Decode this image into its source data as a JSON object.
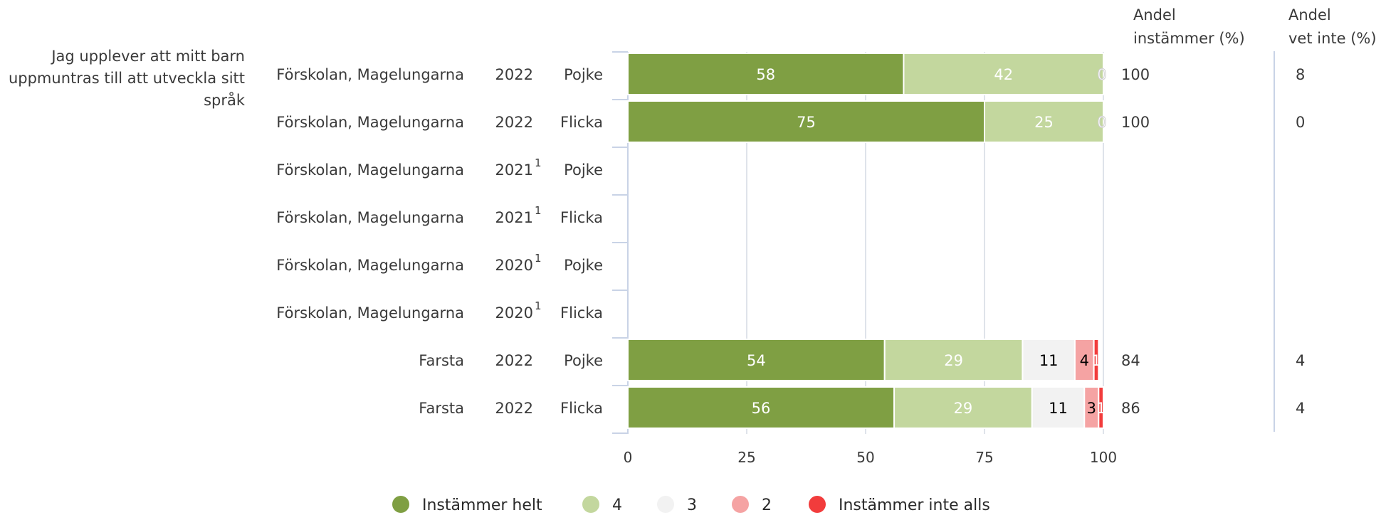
{
  "chart_data": {
    "type": "bar",
    "orientation": "horizontal",
    "stacked": true,
    "question": "Jag upplever att mitt barn uppmuntras till att utveckla sitt språk",
    "xlim": [
      0,
      100
    ],
    "xticks": [
      0,
      25,
      50,
      75,
      100
    ],
    "grid": true,
    "legend_position": "bottom",
    "series": [
      {
        "name": "Instämmer helt",
        "color": "#7f9f43"
      },
      {
        "name": "4",
        "color": "#c3d79e"
      },
      {
        "name": "3",
        "color": "#f2f2f2"
      },
      {
        "name": "2",
        "color": "#f5a3a3"
      },
      {
        "name": "Instämmer inte alls",
        "color": "#f23c3c"
      }
    ],
    "headers": {
      "andel_instammer": [
        "Andel",
        "instämmer (%)"
      ],
      "andel_vet_inte": [
        "Andel",
        "vet inte (%)"
      ]
    },
    "rows": [
      {
        "unit": "Förskolan, Magelungarna",
        "year": "2022",
        "sup": "",
        "gender": "Pojke",
        "values": [
          58,
          42,
          0,
          0,
          0
        ],
        "labels": [
          "58",
          "42",
          "0",
          "",
          ""
        ],
        "andel_instammer": "100",
        "andel_vet_inte": "8"
      },
      {
        "unit": "Förskolan, Magelungarna",
        "year": "2022",
        "sup": "",
        "gender": "Flicka",
        "values": [
          75,
          25,
          0,
          0,
          0
        ],
        "labels": [
          "75",
          "25",
          "0",
          "",
          ""
        ],
        "andel_instammer": "100",
        "andel_vet_inte": "0"
      },
      {
        "unit": "Förskolan, Magelungarna",
        "year": "2021",
        "sup": "1",
        "gender": "Pojke",
        "values": [],
        "labels": [],
        "andel_instammer": "",
        "andel_vet_inte": ""
      },
      {
        "unit": "Förskolan, Magelungarna",
        "year": "2021",
        "sup": "1",
        "gender": "Flicka",
        "values": [],
        "labels": [],
        "andel_instammer": "",
        "andel_vet_inte": ""
      },
      {
        "unit": "Förskolan, Magelungarna",
        "year": "2020",
        "sup": "1",
        "gender": "Pojke",
        "values": [],
        "labels": [],
        "andel_instammer": "",
        "andel_vet_inte": ""
      },
      {
        "unit": "Förskolan, Magelungarna",
        "year": "2020",
        "sup": "1",
        "gender": "Flicka",
        "values": [],
        "labels": [],
        "andel_instammer": "",
        "andel_vet_inte": ""
      },
      {
        "unit": "Farsta",
        "year": "2022",
        "sup": "",
        "gender": "Pojke",
        "values": [
          54,
          29,
          11,
          4,
          1
        ],
        "labels": [
          "54",
          "29",
          "11",
          "4",
          "1"
        ],
        "andel_instammer": "84",
        "andel_vet_inte": "4"
      },
      {
        "unit": "Farsta",
        "year": "2022",
        "sup": "",
        "gender": "Flicka",
        "values": [
          56,
          29,
          11,
          3,
          1
        ],
        "labels": [
          "56",
          "29",
          "11",
          "3",
          "1"
        ],
        "andel_instammer": "86",
        "andel_vet_inte": "4"
      }
    ]
  }
}
